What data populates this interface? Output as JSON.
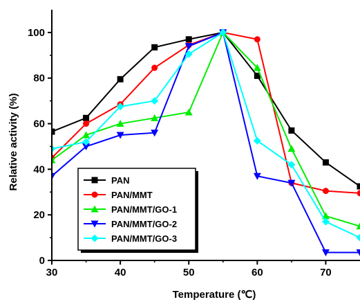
{
  "chart_data": {
    "type": "line",
    "xlabel": "Temperature (℃)",
    "ylabel": "Relative activity (%)",
    "xlim": [
      30,
      75
    ],
    "ylim": [
      0,
      110
    ],
    "xticks": [
      "30",
      "40",
      "50",
      "60",
      "70"
    ],
    "yticks": [
      "0",
      "20",
      "40",
      "60",
      "80",
      "100"
    ],
    "legend_position": "bottom-left",
    "grid": false,
    "x": [
      30,
      35,
      40,
      45,
      50,
      55,
      60,
      65,
      70,
      75
    ],
    "series": [
      {
        "name": "PAN",
        "color": "#000000",
        "marker": "square",
        "values": [
          56.5,
          62.5,
          79.5,
          93.5,
          97,
          100,
          81,
          57,
          43,
          32.5
        ]
      },
      {
        "name": "PAN/MMT",
        "color": "#ff0000",
        "marker": "circle",
        "values": [
          45,
          60,
          68.5,
          84.5,
          94.5,
          100,
          97,
          34,
          30.5,
          29.5
        ]
      },
      {
        "name": "PAN/MMT/GO-1",
        "color": "#00ee00",
        "marker": "triangle-up",
        "values": [
          44,
          55,
          60,
          62.5,
          65,
          100,
          84.5,
          49,
          19.5,
          15
        ]
      },
      {
        "name": "PAN/MMT/GO-2",
        "color": "#0000ff",
        "marker": "triangle-down",
        "values": [
          37,
          50,
          55,
          56,
          94,
          100,
          37,
          34,
          3.5,
          3.5
        ]
      },
      {
        "name": "PAN/MMT/GO-3",
        "color": "#00ffff",
        "marker": "diamond",
        "values": [
          49,
          52,
          67.5,
          70,
          90.5,
          100,
          52.5,
          42,
          17,
          10
        ]
      }
    ]
  }
}
